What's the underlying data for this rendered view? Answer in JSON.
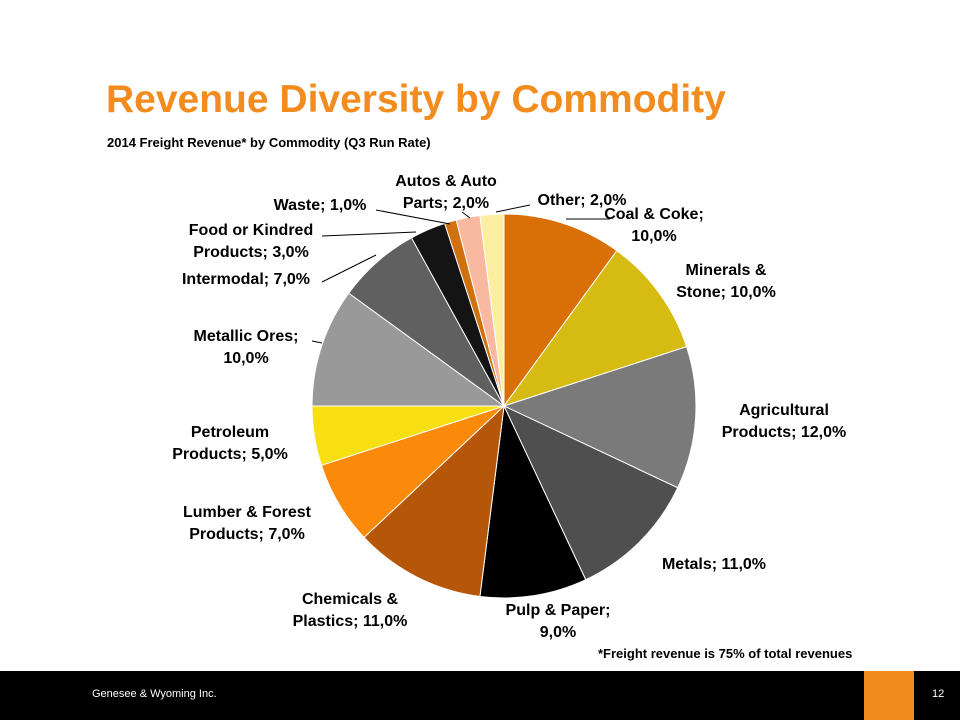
{
  "slide": {
    "title": "Revenue Diversity by Commodity",
    "subtitle": "2014 Freight Revenue* by Commodity (Q3 Run Rate)",
    "footnote": "*Freight revenue is 75% of total revenues",
    "company": "Genesee & Wyoming Inc.",
    "page_number": "12",
    "accent_color": "#f28c1e"
  },
  "chart_data": {
    "type": "pie",
    "title": "2014 Freight Revenue* by Commodity (Q3 Run Rate)",
    "value_unit": "%",
    "start": "12 o'clock",
    "direction": "clockwise",
    "slices": [
      {
        "name": "Coal & Coke",
        "value": 10.0,
        "label": [
          "Coal & Coke;",
          "10,0%"
        ],
        "color": "#d87007"
      },
      {
        "name": "Minerals & Stone",
        "value": 10.0,
        "label": [
          "Minerals &",
          "Stone; 10,0%"
        ],
        "color": "#d6bb12"
      },
      {
        "name": "Agricultural Products",
        "value": 12.0,
        "label": [
          "Agricultural",
          "Products; 12,0%"
        ],
        "color": "#7a7a7a"
      },
      {
        "name": "Metals",
        "value": 11.0,
        "label": [
          "Metals; 11,0%"
        ],
        "color": "#4f4f4f"
      },
      {
        "name": "Pulp & Paper",
        "value": 9.0,
        "label": [
          "Pulp & Paper;",
          "9,0%"
        ],
        "color": "#000000"
      },
      {
        "name": "Chemicals & Plastics",
        "value": 11.0,
        "label": [
          "Chemicals &",
          "Plastics; 11,0%"
        ],
        "color": "#b65608"
      },
      {
        "name": "Lumber & Forest Products",
        "value": 7.0,
        "label": [
          "Lumber & Forest",
          "Products; 7,0%"
        ],
        "color": "#fb8a0a"
      },
      {
        "name": "Petroleum Products",
        "value": 5.0,
        "label": [
          "Petroleum",
          "Products; 5,0%"
        ],
        "color": "#f8df12"
      },
      {
        "name": "Metallic Ores",
        "value": 10.0,
        "label": [
          "Metallic Ores;",
          "10,0%"
        ],
        "color": "#999999"
      },
      {
        "name": "Intermodal",
        "value": 7.0,
        "label": [
          "Intermodal; 7,0%"
        ],
        "color": "#606060"
      },
      {
        "name": "Food or Kindred Products",
        "value": 3.0,
        "label": [
          "Food or Kindred",
          "Products; 3,0%"
        ],
        "color": "#141414"
      },
      {
        "name": "Waste",
        "value": 1.0,
        "label": [
          "Waste; 1,0%"
        ],
        "color": "#d0700e"
      },
      {
        "name": "Autos & Auto Parts",
        "value": 2.0,
        "label": [
          "Autos & Auto",
          "Parts; 2,0%"
        ],
        "color": "#f9b8a0"
      },
      {
        "name": "Other",
        "value": 2.0,
        "label": [
          "Other; 2,0%"
        ],
        "color": "#fbeea0"
      }
    ]
  }
}
